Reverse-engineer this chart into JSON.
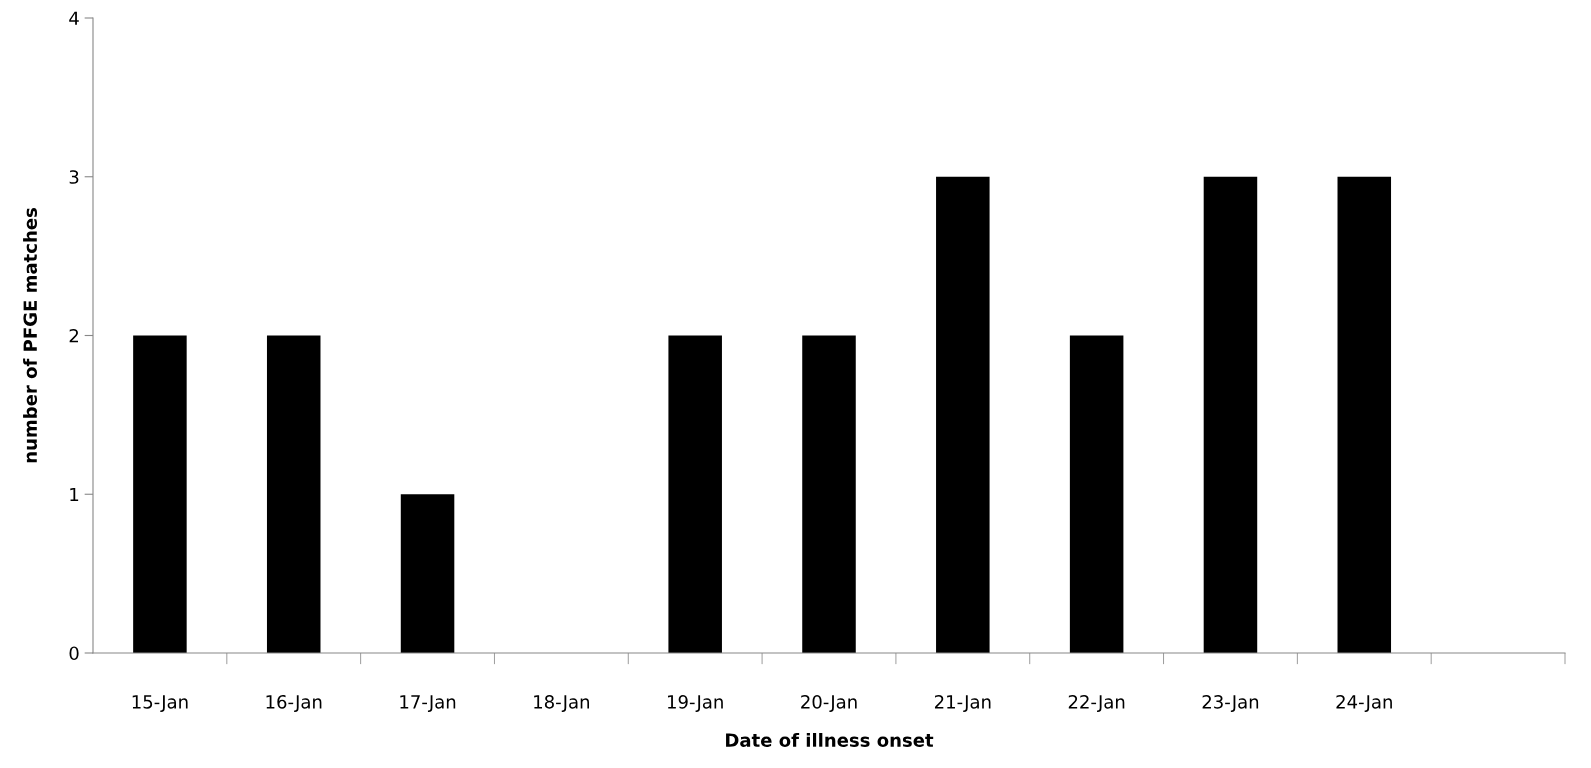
{
  "chart_data": {
    "type": "bar",
    "xlabel": "Date of illness onset",
    "ylabel": "number of PFGE matches",
    "categories": [
      "15-Jan",
      "16-Jan",
      "17-Jan",
      "18-Jan",
      "19-Jan",
      "20-Jan",
      "21-Jan",
      "22-Jan",
      "23-Jan",
      "24-Jan",
      null
    ],
    "values": [
      2,
      2,
      1,
      0,
      2,
      2,
      3,
      2,
      3,
      3,
      null
    ],
    "color": "#000000",
    "ylim": [
      0,
      4
    ],
    "yticks": [
      0,
      1,
      2,
      3,
      4
    ],
    "grid": false,
    "legend": false
  }
}
